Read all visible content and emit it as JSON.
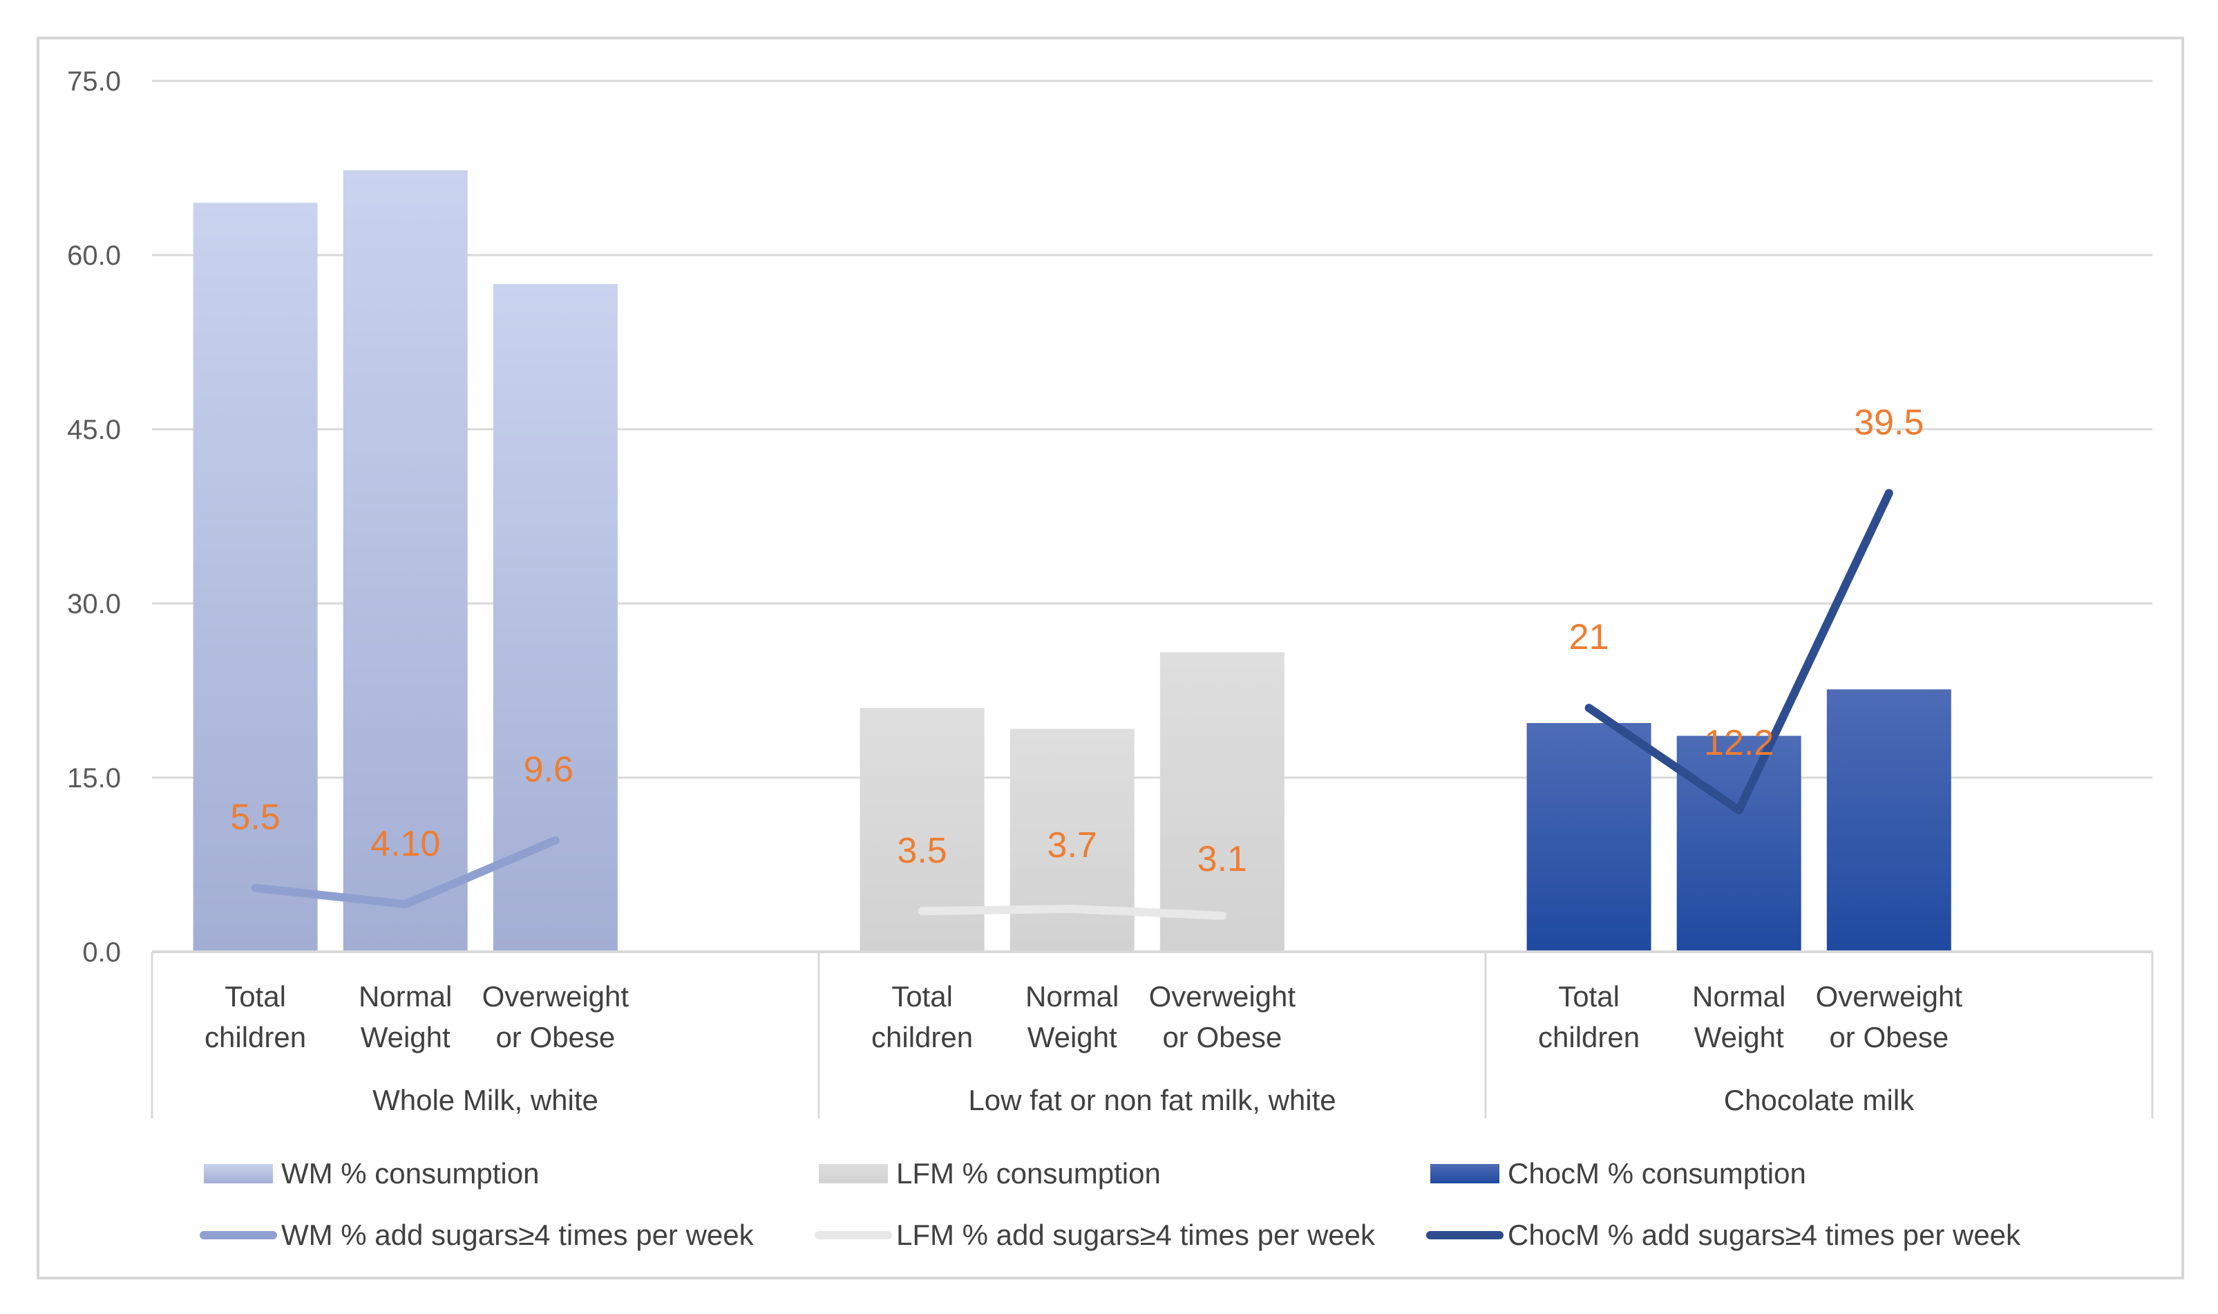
{
  "chart_data": {
    "type": "bar",
    "title": "",
    "xlabel": "",
    "ylabel": "",
    "ylim": [
      0,
      75
    ],
    "yticks": [
      "0.0",
      "15.0",
      "30.0",
      "45.0",
      "60.0",
      "75.0"
    ],
    "grid": true,
    "groups": [
      {
        "label": "Whole Milk, white",
        "categories": [
          "Total children",
          "Normal Weight",
          "Overweight or Obese"
        ]
      },
      {
        "label": "Low fat or non fat milk, white",
        "categories": [
          "Total children",
          "Normal Weight",
          "Overweight or Obese"
        ]
      },
      {
        "label": "Chocolate milk",
        "categories": [
          "Total children",
          "Normal Weight",
          "Overweight or Obese"
        ]
      }
    ],
    "category_lines": [
      [
        "Total",
        "children"
      ],
      [
        "Normal",
        "Weight"
      ],
      [
        "Overweight",
        "or Obese"
      ]
    ],
    "series": [
      {
        "name": "WM % consumption",
        "kind": "bar",
        "group": 0,
        "values": [
          64.5,
          67.3,
          57.5
        ],
        "color": "#aeb9de"
      },
      {
        "name": "LFM % consumption",
        "kind": "bar",
        "group": 1,
        "values": [
          21.0,
          19.2,
          25.8
        ],
        "color": "#d9d9d9"
      },
      {
        "name": "ChocM % consumption",
        "kind": "bar",
        "group": 2,
        "values": [
          19.7,
          18.6,
          22.6
        ],
        "color": "#3d5fab"
      },
      {
        "name": "WM % add sugars≥4 times per week",
        "kind": "line",
        "group": 0,
        "values": [
          5.5,
          4.1,
          9.6
        ],
        "labels": [
          "5.5",
          "4.10",
          "9.6"
        ],
        "color": "#8fa0d0"
      },
      {
        "name": "LFM % add sugars≥4 times per week",
        "kind": "line",
        "group": 1,
        "values": [
          3.5,
          3.7,
          3.1
        ],
        "labels": [
          "3.5",
          "3.7",
          "3.1"
        ],
        "color": "#e8e8e8"
      },
      {
        "name": "ChocM % add sugars≥4 times per week",
        "kind": "line",
        "group": 2,
        "values": [
          21,
          12.2,
          39.5
        ],
        "labels": [
          "21",
          "12.2",
          "39.5"
        ],
        "color": "#2e4d8f"
      }
    ],
    "data_label_color": "#ed7d31",
    "legend_position": "bottom"
  }
}
